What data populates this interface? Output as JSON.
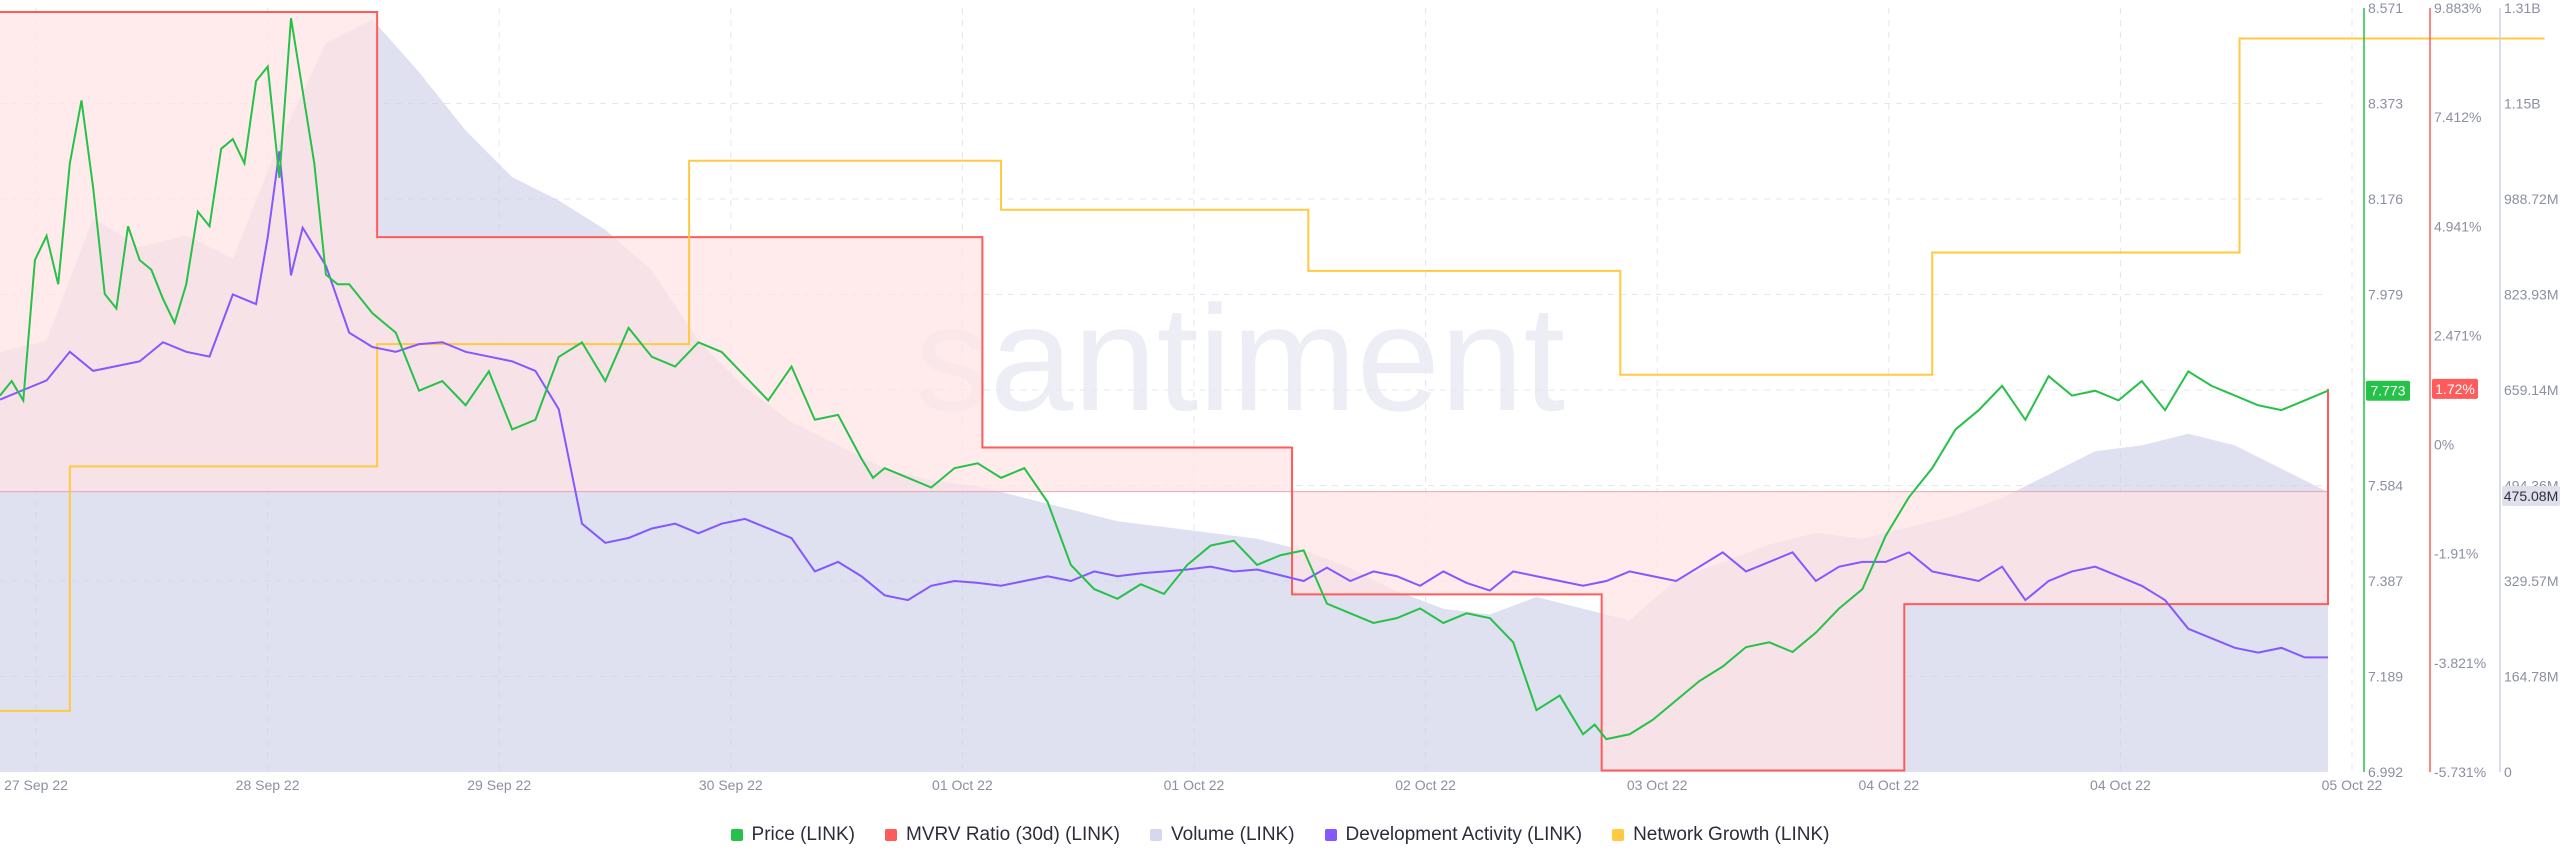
{
  "watermark": "santiment",
  "colors": {
    "price": "#26c149",
    "mvrv": "#ff5b5b",
    "mvrv_fill": "#ffe4e4",
    "volume": "#c9cce6",
    "dev_activity": "#8358ff",
    "network_growth": "#ffc942",
    "axis_text": "#8c8fa1",
    "grid": "#e4e6ef"
  },
  "legend": [
    {
      "key": "price",
      "label": "Price (LINK)",
      "color": "#26c149"
    },
    {
      "key": "mvrv",
      "label": "MVRV Ratio (30d) (LINK)",
      "color": "#ff5b5b"
    },
    {
      "key": "volume",
      "label": "Volume (LINK)",
      "color": "#d6d8ee"
    },
    {
      "key": "dev_activity",
      "label": "Development Activity (LINK)",
      "color": "#8358ff"
    },
    {
      "key": "network_growth",
      "label": "Network Growth (LINK)",
      "color": "#ffc942"
    }
  ],
  "chart_data": {
    "type": "line",
    "x_axis": {
      "tick_labels": [
        "27 Sep 22",
        "28 Sep 22",
        "29 Sep 22",
        "30 Sep 22",
        "01 Oct 22",
        "01 Oct 22",
        "02 Oct 22",
        "03 Oct 22",
        "04 Oct 22",
        "04 Oct 22",
        "05 Oct 22"
      ],
      "range": [
        0,
        10
      ]
    },
    "price_axis": {
      "ticks": [
        "8.571",
        "8.373",
        "8.176",
        "7.979",
        "7.782",
        "7.584",
        "7.387",
        "7.189",
        "6.992"
      ],
      "range": [
        6.992,
        8.571
      ],
      "current_label": "7.773"
    },
    "mvrv_axis": {
      "ticks": [
        "9.883%",
        "7.412%",
        "4.941%",
        "2.471%",
        "0%",
        "-1.91%",
        "-3.821%",
        "-5.731%"
      ],
      "range": [
        -5.731,
        9.883
      ],
      "current_label": "1.72%"
    },
    "volume_axis": {
      "ticks": [
        "1.31B",
        "1.15B",
        "988.72M",
        "823.93M",
        "659.14M",
        "494.36M",
        "329.57M",
        "164.78M",
        "0"
      ],
      "range": [
        0,
        1.31
      ],
      "current_label": "475.08M"
    },
    "series": [
      {
        "name": "Price (LINK)",
        "key": "price",
        "x": [
          0,
          0.05,
          0.1,
          0.15,
          0.2,
          0.25,
          0.3,
          0.35,
          0.4,
          0.45,
          0.5,
          0.55,
          0.6,
          0.65,
          0.7,
          0.75,
          0.8,
          0.85,
          0.9,
          0.95,
          1.0,
          1.05,
          1.1,
          1.15,
          1.2,
          1.25,
          1.3,
          1.35,
          1.4,
          1.45,
          1.5,
          1.55,
          1.6,
          1.65,
          1.7,
          1.8,
          1.9,
          2.0,
          2.1,
          2.2,
          2.3,
          2.4,
          2.5,
          2.6,
          2.7,
          2.8,
          2.9,
          3.0,
          3.1,
          3.2,
          3.3,
          3.4,
          3.5,
          3.6,
          3.7,
          3.75,
          3.8,
          3.9,
          4.0,
          4.1,
          4.2,
          4.3,
          4.4,
          4.5,
          4.6,
          4.7,
          4.8,
          4.9,
          5.0,
          5.1,
          5.2,
          5.3,
          5.4,
          5.5,
          5.6,
          5.7,
          5.8,
          5.9,
          6.0,
          6.1,
          6.2,
          6.3,
          6.4,
          6.5,
          6.6,
          6.7,
          6.8,
          6.85,
          6.9,
          7.0,
          7.1,
          7.2,
          7.3,
          7.4,
          7.5,
          7.6,
          7.7,
          7.8,
          7.9,
          8.0,
          8.1,
          8.2,
          8.3,
          8.4,
          8.5,
          8.6,
          8.7,
          8.8,
          8.9,
          9.0,
          9.1,
          9.2,
          9.3,
          9.4,
          9.5,
          9.6,
          9.7,
          9.8,
          9.9,
          10.0
        ],
        "values": [
          7.77,
          7.8,
          7.76,
          8.05,
          8.1,
          8.0,
          8.25,
          8.38,
          8.2,
          7.98,
          7.95,
          8.12,
          8.05,
          8.03,
          7.97,
          7.92,
          8.0,
          8.15,
          8.12,
          8.28,
          8.3,
          8.25,
          8.42,
          8.45,
          8.22,
          8.55,
          8.4,
          8.25,
          8.02,
          8.0,
          8.0,
          7.97,
          7.94,
          7.92,
          7.9,
          7.78,
          7.8,
          7.75,
          7.82,
          7.7,
          7.72,
          7.85,
          7.88,
          7.8,
          7.91,
          7.85,
          7.83,
          7.88,
          7.86,
          7.81,
          7.76,
          7.83,
          7.72,
          7.73,
          7.64,
          7.6,
          7.62,
          7.6,
          7.58,
          7.62,
          7.63,
          7.6,
          7.62,
          7.55,
          7.42,
          7.37,
          7.35,
          7.38,
          7.36,
          7.42,
          7.46,
          7.47,
          7.42,
          7.44,
          7.45,
          7.34,
          7.32,
          7.3,
          7.31,
          7.33,
          7.3,
          7.32,
          7.31,
          7.26,
          7.12,
          7.15,
          7.07,
          7.09,
          7.06,
          7.07,
          7.1,
          7.14,
          7.18,
          7.21,
          7.25,
          7.26,
          7.24,
          7.28,
          7.33,
          7.37,
          7.48,
          7.56,
          7.62,
          7.7,
          7.74,
          7.79,
          7.72,
          7.81,
          7.77,
          7.78,
          7.76,
          7.8,
          7.74,
          7.82,
          7.79,
          7.77,
          7.75,
          7.74,
          7.76,
          7.78
        ]
      },
      {
        "name": "MVRV Ratio (30d) (LINK)",
        "key": "mvrv",
        "step": true,
        "x": [
          0,
          1.62,
          2.92,
          4.22,
          5.55,
          6.88,
          8.18,
          10.0
        ],
        "values": [
          9.8,
          5.2,
          5.2,
          0.9,
          -2.1,
          -5.7,
          -2.3,
          2.1
        ]
      },
      {
        "name": "Volume (LINK)",
        "key": "volume",
        "x": [
          0,
          0.2,
          0.4,
          0.6,
          0.8,
          1.0,
          1.2,
          1.4,
          1.6,
          1.8,
          2.0,
          2.2,
          2.4,
          2.6,
          2.8,
          3.0,
          3.2,
          3.4,
          3.6,
          3.8,
          4.0,
          4.2,
          4.4,
          4.6,
          4.8,
          5.0,
          5.2,
          5.4,
          5.6,
          5.8,
          6.0,
          6.2,
          6.4,
          6.6,
          6.8,
          7.0,
          7.2,
          7.4,
          7.6,
          7.8,
          8.0,
          8.2,
          8.4,
          8.6,
          8.8,
          9.0,
          9.2,
          9.4,
          9.6,
          9.8,
          10.0
        ],
        "values": [
          0.72,
          0.74,
          0.95,
          0.9,
          0.92,
          0.88,
          1.08,
          1.25,
          1.29,
          1.2,
          1.1,
          1.02,
          0.98,
          0.93,
          0.86,
          0.74,
          0.66,
          0.6,
          0.56,
          0.52,
          0.5,
          0.49,
          0.47,
          0.45,
          0.43,
          0.42,
          0.41,
          0.4,
          0.38,
          0.35,
          0.31,
          0.28,
          0.27,
          0.3,
          0.28,
          0.26,
          0.33,
          0.36,
          0.39,
          0.41,
          0.4,
          0.42,
          0.44,
          0.47,
          0.51,
          0.55,
          0.56,
          0.58,
          0.56,
          0.52,
          0.48
        ]
      },
      {
        "name": "Development Activity (LINK)",
        "key": "dev_activity",
        "x": [
          0,
          0.1,
          0.2,
          0.3,
          0.4,
          0.5,
          0.6,
          0.7,
          0.8,
          0.9,
          1.0,
          1.1,
          1.15,
          1.2,
          1.25,
          1.3,
          1.4,
          1.5,
          1.6,
          1.7,
          1.8,
          1.9,
          2.0,
          2.1,
          2.2,
          2.3,
          2.4,
          2.5,
          2.6,
          2.7,
          2.8,
          2.9,
          3.0,
          3.1,
          3.2,
          3.3,
          3.4,
          3.5,
          3.6,
          3.7,
          3.8,
          3.9,
          4.0,
          4.1,
          4.2,
          4.3,
          4.4,
          4.5,
          4.6,
          4.7,
          4.8,
          4.9,
          5.0,
          5.1,
          5.2,
          5.3,
          5.4,
          5.5,
          5.6,
          5.7,
          5.8,
          5.9,
          6.0,
          6.1,
          6.2,
          6.3,
          6.4,
          6.5,
          6.6,
          6.7,
          6.8,
          6.9,
          7.0,
          7.1,
          7.2,
          7.3,
          7.4,
          7.5,
          7.6,
          7.7,
          7.8,
          7.9,
          8.0,
          8.1,
          8.2,
          8.3,
          8.4,
          8.5,
          8.6,
          8.7,
          8.8,
          8.9,
          9.0,
          9.1,
          9.2,
          9.3,
          9.4,
          9.5,
          9.6,
          9.7,
          9.8,
          9.9,
          10.0
        ],
        "values": [
          590,
          600,
          610,
          640,
          620,
          625,
          630,
          650,
          640,
          635,
          700,
          690,
          760,
          850,
          720,
          770,
          730,
          660,
          645,
          640,
          648,
          650,
          640,
          635,
          630,
          620,
          580,
          460,
          440,
          445,
          455,
          460,
          450,
          460,
          465,
          455,
          445,
          410,
          420,
          405,
          385,
          380,
          395,
          400,
          398,
          395,
          400,
          405,
          400,
          410,
          405,
          408,
          410,
          412,
          415,
          410,
          412,
          406,
          400,
          414,
          400,
          410,
          405,
          395,
          410,
          398,
          390,
          410,
          405,
          400,
          395,
          400,
          410,
          405,
          400,
          415,
          430,
          410,
          420,
          430,
          400,
          415,
          420,
          420,
          430,
          410,
          405,
          400,
          415,
          380,
          400,
          410,
          415,
          405,
          395,
          380,
          350,
          340,
          330,
          325,
          330,
          320,
          320
        ]
      },
      {
        "name": "Network Growth (LINK)",
        "key": "network_growth",
        "step": true,
        "x": [
          0,
          0.3,
          1.62,
          2.96,
          4.3,
          5.62,
          6.96,
          8.3,
          9.62
        ],
        "values": [
          40,
          80,
          100,
          130,
          122,
          112,
          95,
          115,
          150
        ]
      }
    ]
  }
}
